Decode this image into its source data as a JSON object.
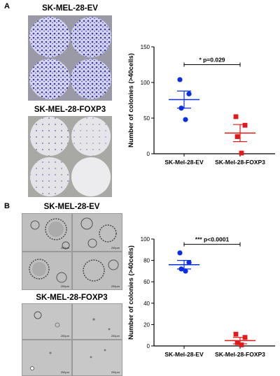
{
  "panels": [
    {
      "letter": "A",
      "top_label": "SK-MEL-28-EV",
      "bottom_label": "SK-MEL-28-FOXP3",
      "scale_bar": "",
      "chart_data": {
        "type": "scatter",
        "categories": [
          "SK-Mel-28-EV",
          "SK-Mel-28-FOXP3"
        ],
        "ylabel": "Number of colonies (>40cells)",
        "ylim": [
          0,
          150
        ],
        "yticks": [
          0,
          50,
          100,
          150
        ],
        "series": [
          {
            "values": [
              104,
              84,
              64,
              48
            ],
            "mean": 76,
            "sem": [
              64,
              88
            ],
            "color": "#0a2ee0",
            "marker": "circle"
          },
          {
            "values": [
              52,
              40,
              24,
              1
            ],
            "mean": 29,
            "sem": [
              17,
              41
            ],
            "color": "#e01a1a",
            "marker": "square"
          }
        ],
        "annotation": "* p=0.029",
        "bracket_y": 125
      }
    },
    {
      "letter": "B",
      "top_label": "SK-MEL-28-EV",
      "bottom_label": "SK-MEL-28-FOXP3",
      "scale_bar": "200µm",
      "chart_data": {
        "type": "scatter",
        "categories": [
          "SK-Mel-28-EV",
          "SK-Mel-28-FOXP3"
        ],
        "ylabel": "Number of colonies (>40cells)",
        "ylim": [
          0,
          100
        ],
        "yticks": [
          0,
          20,
          40,
          60,
          80,
          100
        ],
        "series": [
          {
            "values": [
              87,
              78,
              72,
              70
            ],
            "mean": 76,
            "sem": [
              72,
              80
            ],
            "color": "#0a2ee0",
            "marker": "circle"
          },
          {
            "values": [
              11,
              8,
              3,
              1
            ],
            "mean": 5,
            "sem": [
              2,
              8
            ],
            "color": "#e01a1a",
            "marker": "square"
          }
        ],
        "annotation": "*** p<0.0001",
        "bracket_y": 95
      }
    }
  ]
}
